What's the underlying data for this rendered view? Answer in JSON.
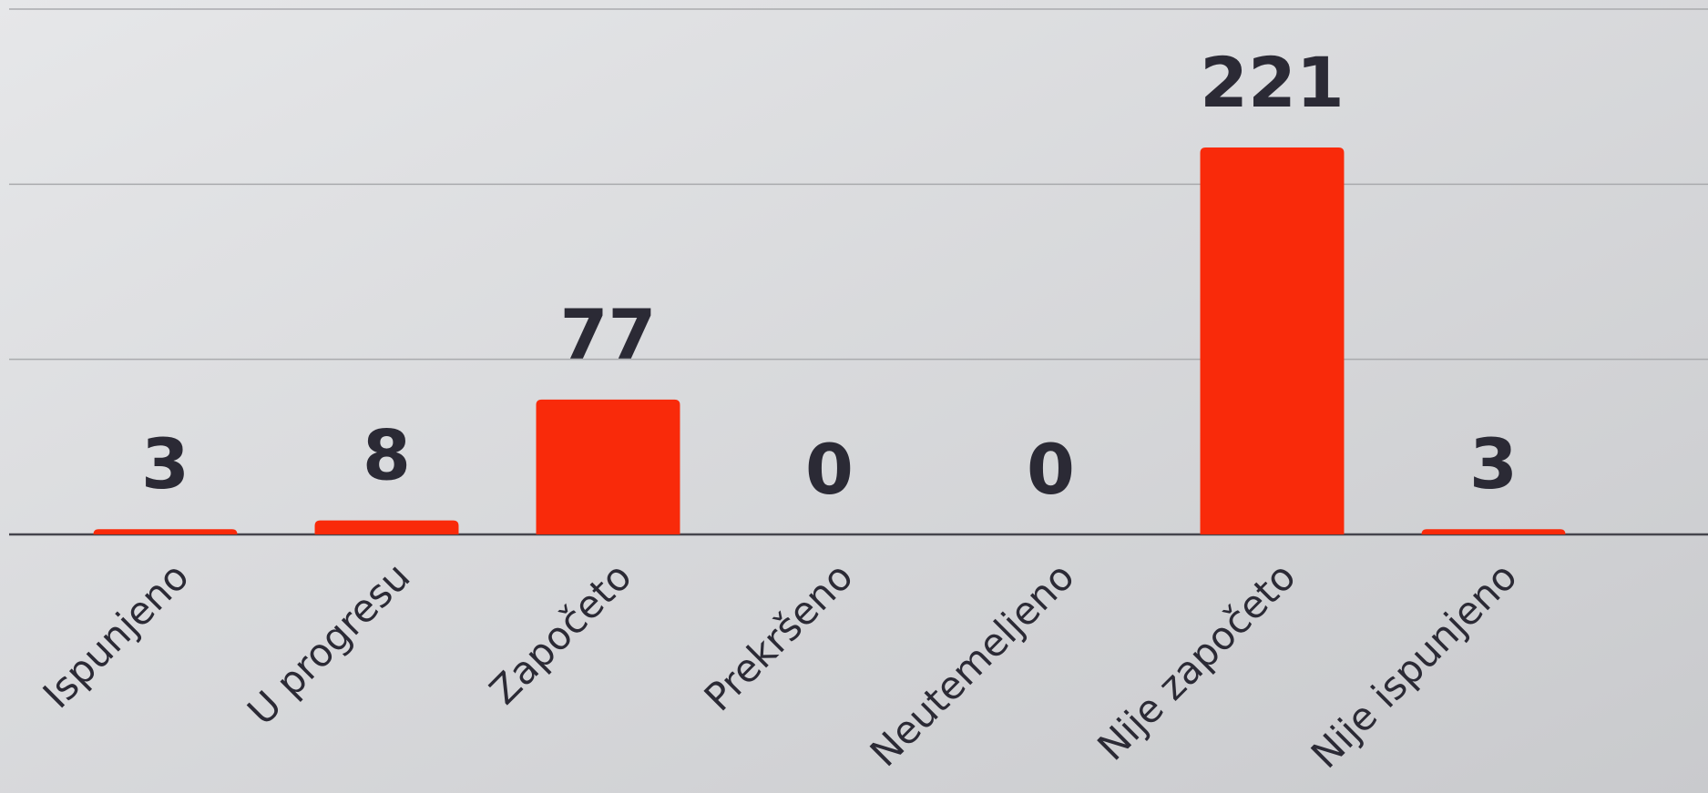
{
  "chart_data": {
    "type": "bar",
    "categories": [
      "Ispunjeno",
      "U progresu",
      "Započeto",
      "Prekršeno",
      "Neutemeljeno",
      "Nije započeto",
      "Nije ispunjeno"
    ],
    "values": [
      3,
      8,
      77,
      0,
      0,
      221,
      3
    ],
    "color": "#f92a0a",
    "ylim": [
      0,
      300
    ],
    "yticks": [
      0,
      100,
      200,
      300
    ],
    "grid": true
  }
}
